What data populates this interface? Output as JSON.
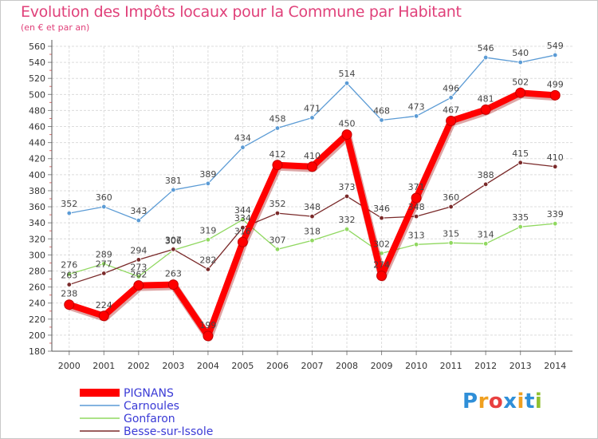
{
  "chart_data": {
    "type": "line",
    "title": "Evolution des Impôts locaux pour la Commune par Habitant",
    "subtitle": "(en € et par an)",
    "x": [
      "2000",
      "2001",
      "2002",
      "2003",
      "2004",
      "2005",
      "2006",
      "2007",
      "2008",
      "2009",
      "2010",
      "2011",
      "2012",
      "2013",
      "2014"
    ],
    "ylim": [
      180,
      560
    ],
    "yticks": [
      180,
      200,
      220,
      240,
      260,
      280,
      300,
      320,
      340,
      360,
      380,
      400,
      420,
      440,
      460,
      480,
      500,
      520,
      540,
      560
    ],
    "grid": true,
    "legend_position": "bottom-left",
    "series": [
      {
        "name": "PIGNANS",
        "color": "#ff0000",
        "values": [
          238,
          224,
          262,
          263,
          199,
          316,
          412,
          410,
          450,
          274,
          371,
          467,
          481,
          502,
          499
        ],
        "labels": [
          "238",
          "224",
          "262",
          "263",
          "199",
          "316",
          "412",
          "410",
          "450",
          "274",
          "371",
          "467",
          "481",
          "502",
          "499"
        ]
      },
      {
        "name": "Carnoules",
        "color": "#5b9bd5",
        "values": [
          352,
          360,
          343,
          381,
          389,
          434,
          458,
          471,
          514,
          468,
          473,
          496,
          546,
          540,
          549
        ],
        "labels": [
          "352",
          "360",
          "343",
          "381",
          "389",
          "434",
          "458",
          "471",
          "514",
          "468",
          "473",
          "496",
          "546",
          "540",
          "549"
        ]
      },
      {
        "name": "Gonfaron",
        "color": "#90d860",
        "values": [
          276,
          289,
          273,
          306,
          319,
          344,
          307,
          318,
          332,
          302,
          313,
          315,
          314,
          335,
          339
        ],
        "labels": [
          "276",
          "289",
          "273",
          "306",
          "319",
          "344",
          "307",
          "318",
          "332",
          "302",
          "313",
          "315",
          "314",
          "335",
          "339"
        ]
      },
      {
        "name": "Besse-sur-Issole",
        "color": "#7a2a2a",
        "values": [
          263,
          277,
          294,
          307,
          282,
          334,
          352,
          348,
          373,
          346,
          348,
          360,
          388,
          415,
          410
        ],
        "labels": [
          "263",
          "277",
          "294",
          "307",
          "282",
          "334",
          "352",
          "348",
          "373",
          "346",
          "348",
          "360",
          "388",
          "415",
          "410"
        ]
      }
    ]
  },
  "logo": {
    "letters": [
      "P",
      "r",
      "o",
      "x",
      "i",
      "t",
      "i"
    ],
    "colors": [
      "#2f8fd8",
      "#f0a020",
      "#e84040",
      "#2f8fd8",
      "#f0a020",
      "#2f8fd8",
      "#90c030"
    ]
  }
}
